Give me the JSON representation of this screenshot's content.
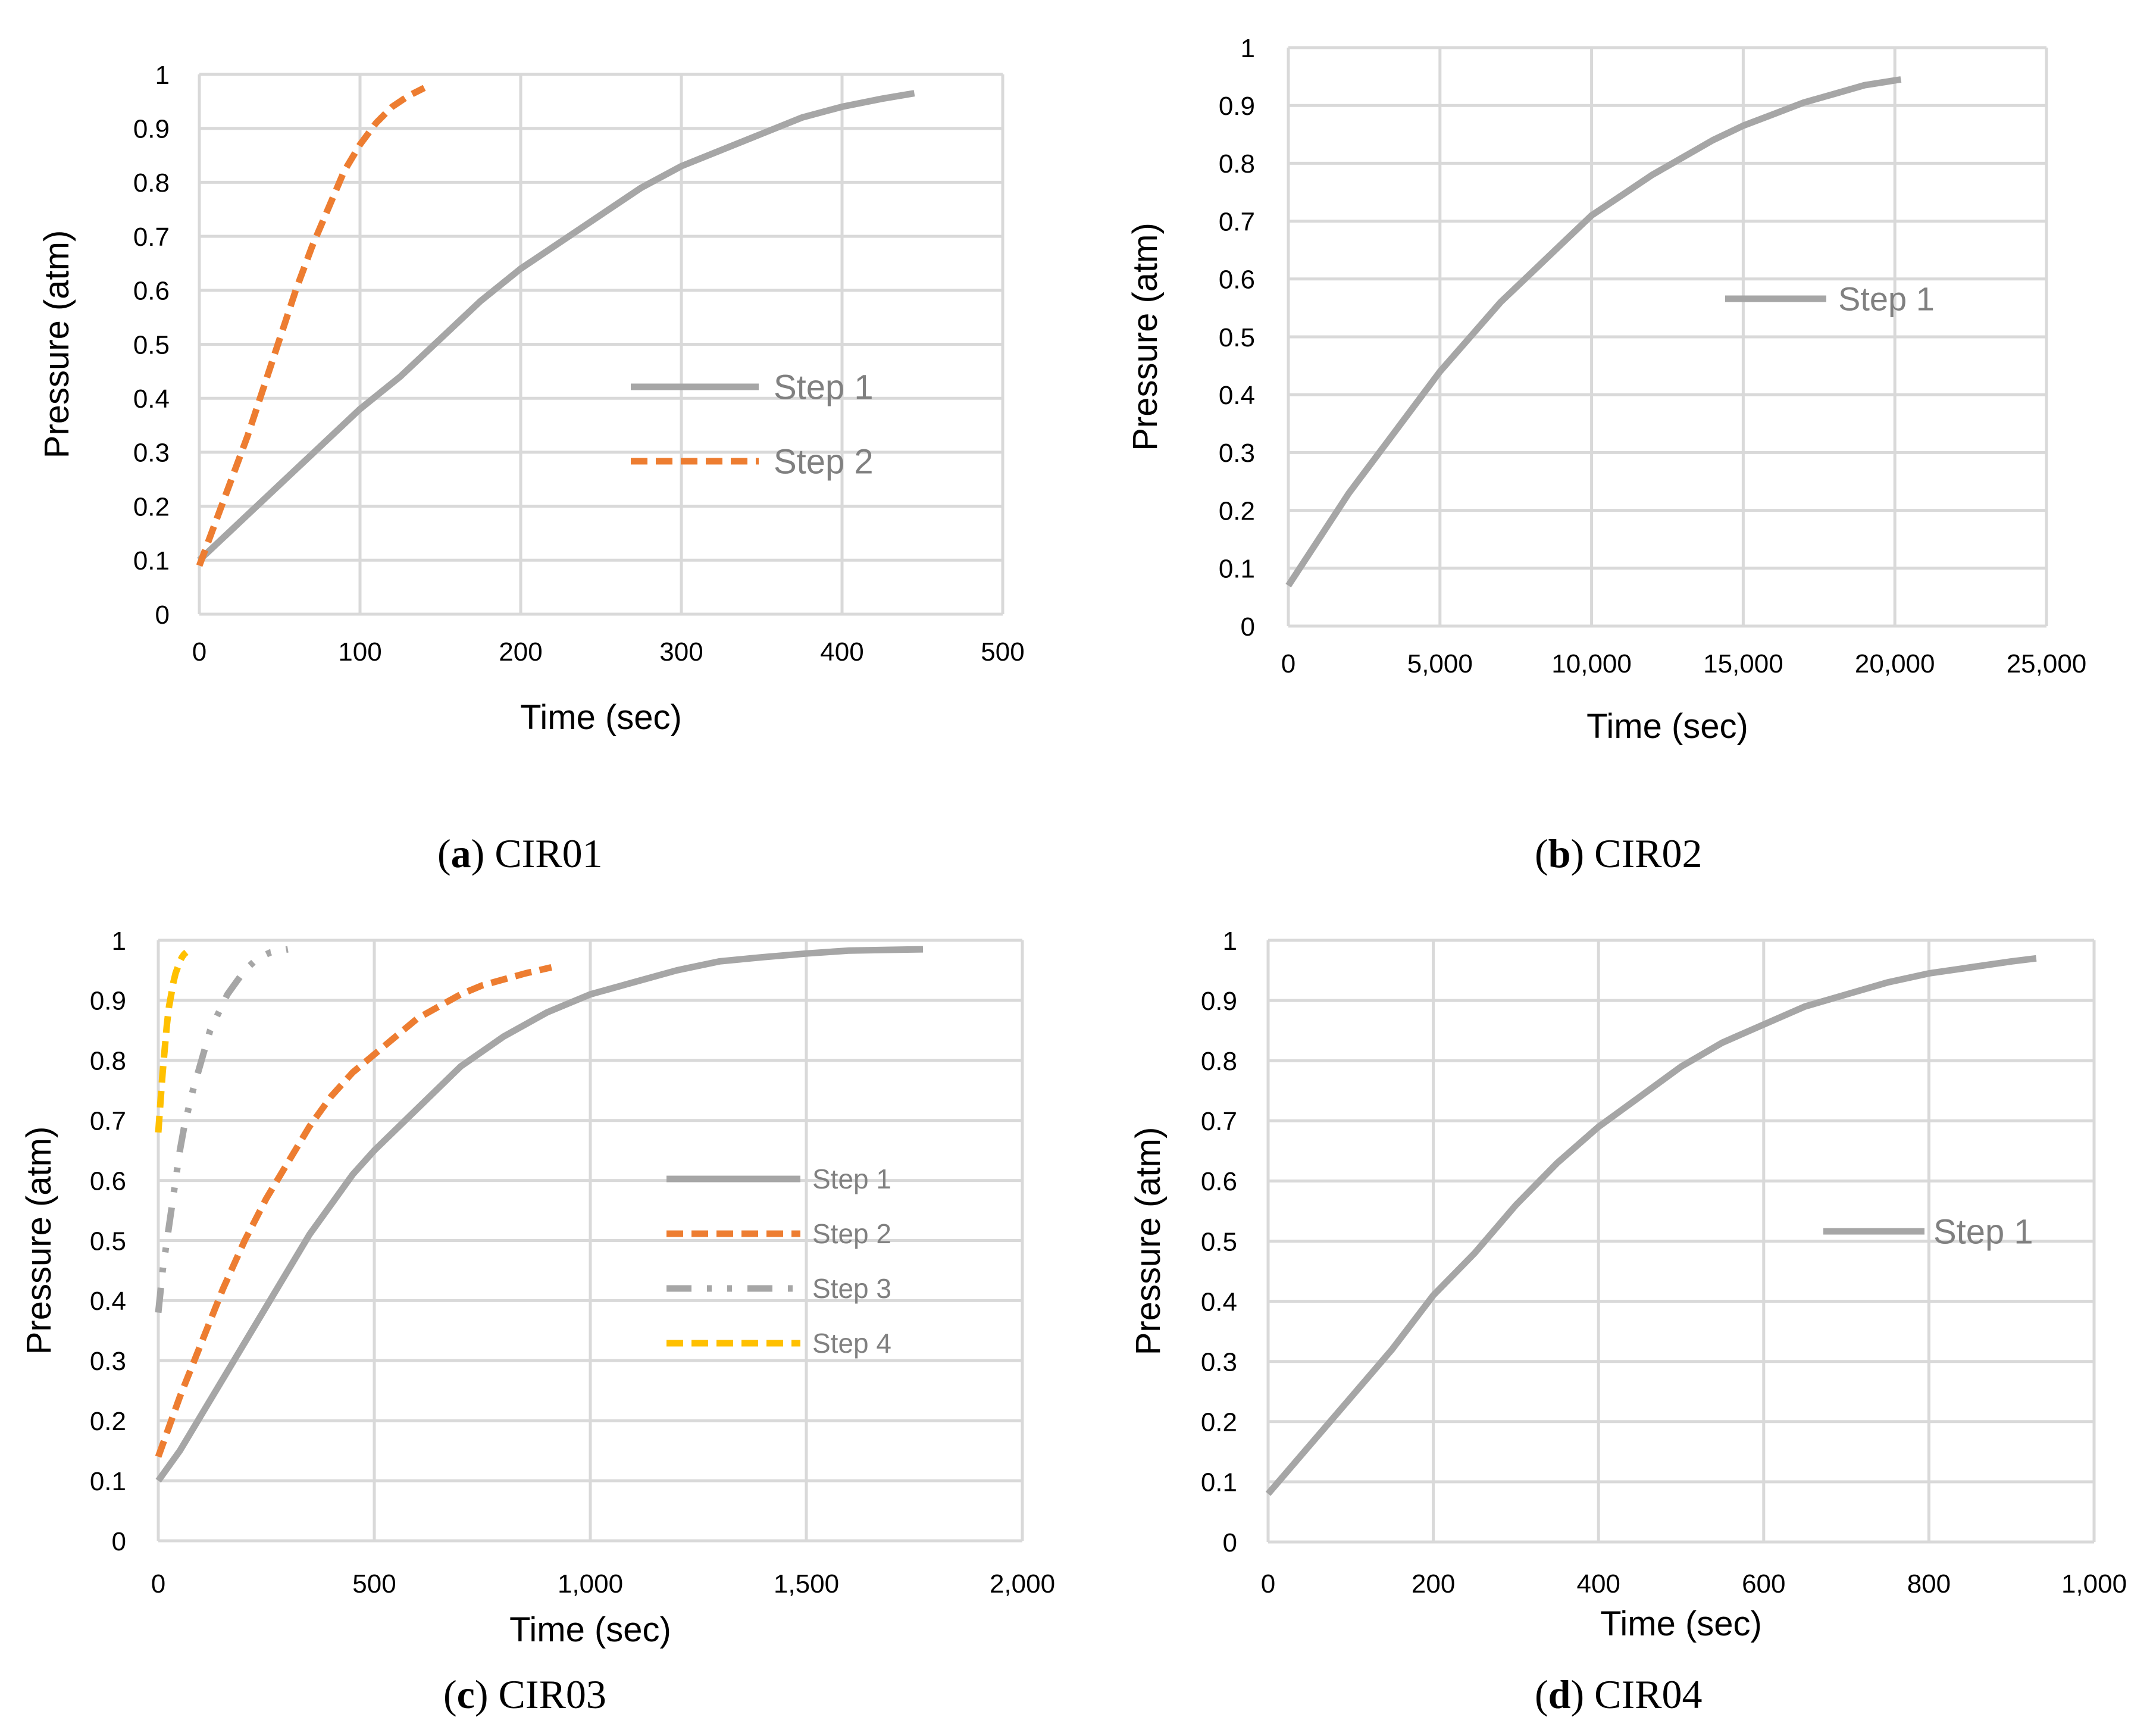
{
  "figure": {
    "captions": [
      {
        "open": "(",
        "letter": "a",
        "close": ")",
        "name": "CIR01"
      },
      {
        "open": "(",
        "letter": "b",
        "close": ")",
        "name": "CIR02"
      },
      {
        "open": "(",
        "letter": "c",
        "close": ")",
        "name": "CIR03"
      },
      {
        "open": "(",
        "letter": "d",
        "close": ")",
        "name": "CIR04"
      }
    ]
  },
  "colors": {
    "step1": "#a6a6a6",
    "step2": "#ed7d31",
    "step3": "#a6a6a6",
    "step4": "#ffc000",
    "grid": "#d9d9d9"
  },
  "chart_data": [
    {
      "id": "CIR01",
      "type": "line",
      "xlabel": "Time (sec)",
      "ylabel": "Pressure (atm)",
      "xlim": [
        0,
        500
      ],
      "ylim": [
        0,
        1
      ],
      "xticks": [
        0,
        100,
        200,
        300,
        400,
        500
      ],
      "xtick_labels": [
        "0",
        "100",
        "200",
        "300",
        "400",
        "500"
      ],
      "yticks": [
        0,
        0.1,
        0.2,
        0.3,
        0.4,
        0.5,
        0.6,
        0.7,
        0.8,
        0.9,
        1
      ],
      "ytick_labels": [
        "0",
        "0.1",
        "0.2",
        "0.3",
        "0.4",
        "0.5",
        "0.6",
        "0.7",
        "0.8",
        "0.9",
        "1"
      ],
      "grid": true,
      "legend_position": "center-right",
      "series": [
        {
          "name": "Step 1",
          "style": "solid",
          "color": "#a6a6a6",
          "x": [
            0,
            25,
            50,
            75,
            100,
            125,
            150,
            175,
            200,
            225,
            250,
            275,
            300,
            325,
            350,
            375,
            400,
            425,
            445
          ],
          "y": [
            0.1,
            0.17,
            0.24,
            0.31,
            0.38,
            0.44,
            0.51,
            0.58,
            0.64,
            0.69,
            0.74,
            0.79,
            0.83,
            0.86,
            0.89,
            0.92,
            0.94,
            0.955,
            0.965
          ]
        },
        {
          "name": "Step 2",
          "style": "dashed",
          "color": "#ed7d31",
          "x": [
            0,
            10,
            20,
            30,
            40,
            50,
            60,
            70,
            80,
            90,
            100,
            110,
            120,
            130,
            140
          ],
          "y": [
            0.09,
            0.17,
            0.25,
            0.33,
            0.42,
            0.51,
            0.6,
            0.68,
            0.75,
            0.82,
            0.87,
            0.91,
            0.94,
            0.96,
            0.975
          ]
        }
      ]
    },
    {
      "id": "CIR02",
      "type": "line",
      "xlabel": "Time (sec)",
      "ylabel": "Pressure (atm)",
      "xlim": [
        0,
        25000
      ],
      "ylim": [
        0,
        1
      ],
      "xticks": [
        0,
        5000,
        10000,
        15000,
        20000,
        25000
      ],
      "xtick_labels": [
        "0",
        "5,000",
        "10,000",
        "15,000",
        "20,000",
        "25,000"
      ],
      "yticks": [
        0,
        0.1,
        0.2,
        0.3,
        0.4,
        0.5,
        0.6,
        0.7,
        0.8,
        0.9,
        1
      ],
      "ytick_labels": [
        "0",
        "0.1",
        "0.2",
        "0.3",
        "0.4",
        "0.5",
        "0.6",
        "0.7",
        "0.8",
        "0.9",
        "1"
      ],
      "grid": true,
      "legend_position": "center-right",
      "series": [
        {
          "name": "Step 1",
          "style": "solid",
          "color": "#a6a6a6",
          "x": [
            0,
            1000,
            2000,
            3000,
            4000,
            5000,
            6000,
            7000,
            8000,
            9000,
            10000,
            11000,
            12000,
            13000,
            14000,
            15000,
            16000,
            17000,
            18000,
            19000,
            20200
          ],
          "y": [
            0.07,
            0.15,
            0.23,
            0.3,
            0.37,
            0.44,
            0.5,
            0.56,
            0.61,
            0.66,
            0.71,
            0.745,
            0.78,
            0.81,
            0.84,
            0.865,
            0.885,
            0.905,
            0.92,
            0.935,
            0.945
          ]
        }
      ]
    },
    {
      "id": "CIR03",
      "type": "line",
      "xlabel": "Time (sec)",
      "ylabel": "Pressure (atm)",
      "xlim": [
        0,
        2000
      ],
      "ylim": [
        0,
        1
      ],
      "xticks": [
        0,
        500,
        1000,
        1500,
        2000
      ],
      "xtick_labels": [
        "0",
        "500",
        "1,000",
        "1,500",
        "2,000"
      ],
      "yticks": [
        0,
        0.1,
        0.2,
        0.3,
        0.4,
        0.5,
        0.6,
        0.7,
        0.8,
        0.9,
        1
      ],
      "ytick_labels": [
        "0",
        "0.1",
        "0.2",
        "0.3",
        "0.4",
        "0.5",
        "0.6",
        "0.7",
        "0.8",
        "0.9",
        "1"
      ],
      "grid": true,
      "legend_position": "center-right",
      "series": [
        {
          "name": "Step 1",
          "style": "solid",
          "color": "#a6a6a6",
          "x": [
            0,
            50,
            100,
            150,
            200,
            250,
            300,
            350,
            400,
            450,
            500,
            600,
            700,
            800,
            900,
            1000,
            1100,
            1200,
            1300,
            1400,
            1500,
            1600,
            1770
          ],
          "y": [
            0.1,
            0.15,
            0.21,
            0.27,
            0.33,
            0.39,
            0.45,
            0.51,
            0.56,
            0.61,
            0.65,
            0.72,
            0.79,
            0.84,
            0.88,
            0.91,
            0.93,
            0.95,
            0.965,
            0.972,
            0.978,
            0.983,
            0.985
          ]
        },
        {
          "name": "Step 2",
          "style": "dashed",
          "color": "#ed7d31",
          "x": [
            0,
            50,
            100,
            150,
            200,
            250,
            300,
            350,
            400,
            450,
            500,
            550,
            600,
            650,
            700,
            750,
            800,
            850,
            910
          ],
          "y": [
            0.14,
            0.24,
            0.33,
            0.42,
            0.5,
            0.57,
            0.63,
            0.69,
            0.74,
            0.78,
            0.81,
            0.84,
            0.87,
            0.89,
            0.91,
            0.925,
            0.935,
            0.945,
            0.955
          ]
        },
        {
          "name": "Step 3",
          "style": "dash-dot-dot",
          "color": "#a6a6a6",
          "x": [
            0,
            10,
            20,
            30,
            40,
            50,
            60,
            70,
            80,
            100,
            120,
            140,
            160,
            180,
            200,
            230,
            260,
            300
          ],
          "y": [
            0.38,
            0.45,
            0.5,
            0.55,
            0.6,
            0.65,
            0.69,
            0.72,
            0.75,
            0.8,
            0.85,
            0.88,
            0.91,
            0.93,
            0.95,
            0.97,
            0.98,
            0.985
          ]
        },
        {
          "name": "Step 4",
          "style": "dashed",
          "color": "#ffc000",
          "x": [
            0,
            5,
            10,
            15,
            20,
            25,
            30,
            35,
            40,
            45,
            50,
            55,
            60,
            65
          ],
          "y": [
            0.68,
            0.73,
            0.78,
            0.82,
            0.86,
            0.89,
            0.91,
            0.93,
            0.945,
            0.955,
            0.965,
            0.972,
            0.977,
            0.98
          ]
        }
      ]
    },
    {
      "id": "CIR04",
      "type": "line",
      "xlabel": "Time (sec)",
      "ylabel": "Pressure (atm)",
      "xlim": [
        0,
        1000
      ],
      "ylim": [
        0,
        1
      ],
      "xticks": [
        0,
        200,
        400,
        600,
        800,
        1000
      ],
      "xtick_labels": [
        "0",
        "200",
        "400",
        "600",
        "800",
        "1,000"
      ],
      "yticks": [
        0,
        0.1,
        0.2,
        0.3,
        0.4,
        0.5,
        0.6,
        0.7,
        0.8,
        0.9,
        1
      ],
      "ytick_labels": [
        "0",
        "0.1",
        "0.2",
        "0.3",
        "0.4",
        "0.5",
        "0.6",
        "0.7",
        "0.8",
        "0.9",
        "1"
      ],
      "grid": true,
      "legend_position": "center-right",
      "series": [
        {
          "name": "Step 1",
          "style": "solid",
          "color": "#a6a6a6",
          "x": [
            0,
            50,
            100,
            150,
            200,
            250,
            300,
            350,
            400,
            450,
            500,
            550,
            600,
            650,
            700,
            750,
            800,
            850,
            900,
            930
          ],
          "y": [
            0.08,
            0.16,
            0.24,
            0.32,
            0.41,
            0.48,
            0.56,
            0.63,
            0.69,
            0.74,
            0.79,
            0.83,
            0.86,
            0.89,
            0.91,
            0.93,
            0.945,
            0.955,
            0.965,
            0.97
          ]
        }
      ]
    }
  ]
}
